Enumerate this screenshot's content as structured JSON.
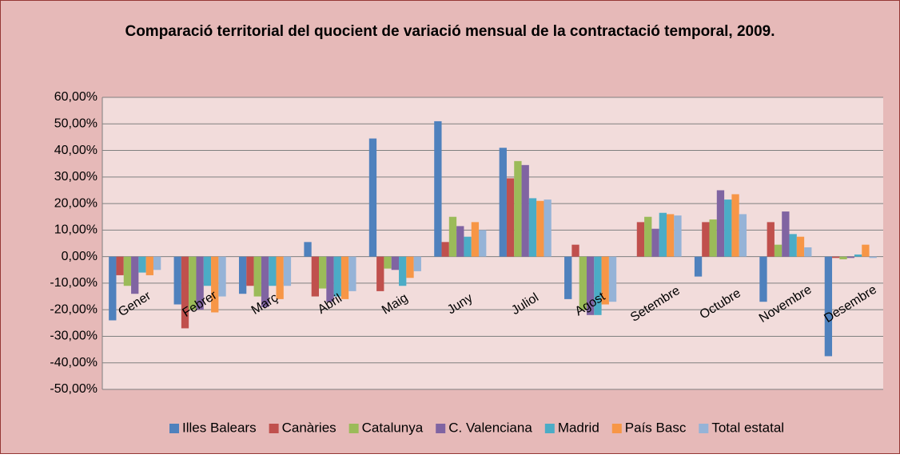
{
  "chart_data": {
    "type": "bar",
    "title": "Comparació territorial del quocient de variació mensual de la contractació temporal, 2009.",
    "categories": [
      "Gener",
      "Febrer",
      "Març",
      "Abril",
      "Maig",
      "Juny",
      "Juliol",
      "Agost",
      "Setembre",
      "Octubre",
      "Novembre",
      "Desembre"
    ],
    "series": [
      {
        "name": "Illes Balears",
        "color": "#4f81bd",
        "values": [
          -24,
          -18,
          -14,
          5.5,
          44.5,
          51,
          41,
          -16,
          0,
          -7.5,
          -17,
          -37.5
        ]
      },
      {
        "name": "Canàries",
        "color": "#c0504d",
        "values": [
          -7,
          -27,
          -11,
          -15,
          -13,
          5.5,
          29.5,
          4.5,
          13,
          13,
          13,
          -0.5
        ]
      },
      {
        "name": "Catalunya",
        "color": "#9bbb59",
        "values": [
          -11,
          -20,
          -15,
          -12,
          -4.5,
          15,
          36,
          -20,
          15,
          14,
          4.5,
          -1
        ]
      },
      {
        "name": "C. Valenciana",
        "color": "#8064a2",
        "values": [
          -14,
          -20,
          -19,
          -17,
          -5,
          11.5,
          34.5,
          -22,
          10.5,
          25,
          17,
          -0.5
        ]
      },
      {
        "name": "Madrid",
        "color": "#4bacc6",
        "values": [
          -6,
          -11,
          -11,
          -15,
          -11,
          7.5,
          22,
          -22,
          16.5,
          21.5,
          8.5,
          0.8
        ]
      },
      {
        "name": "País Basc",
        "color": "#f79646",
        "values": [
          -7,
          -21,
          -16,
          -16,
          -8,
          13,
          21,
          -18,
          16,
          23.5,
          7.5,
          4.5
        ]
      },
      {
        "name": "Total estatal",
        "color": "#95b3d7",
        "values": [
          -5,
          -15,
          -11,
          -13,
          -5.5,
          10,
          21.5,
          -17,
          15.5,
          16,
          3.5,
          -0.5
        ]
      }
    ],
    "ylim": [
      -50,
      60
    ],
    "yticks": [
      {
        "value": -50,
        "label": "-50,00%"
      },
      {
        "value": -40,
        "label": "-40,00%"
      },
      {
        "value": -30,
        "label": "-30,00%"
      },
      {
        "value": -20,
        "label": "-20,00%"
      },
      {
        "value": -10,
        "label": "-10,00%"
      },
      {
        "value": 0,
        "label": "0,00%"
      },
      {
        "value": 10,
        "label": "10,00%"
      },
      {
        "value": 20,
        "label": "20,00%"
      },
      {
        "value": 30,
        "label": "30,00%"
      },
      {
        "value": 40,
        "label": "40,00%"
      },
      {
        "value": 50,
        "label": "50,00%"
      },
      {
        "value": 60,
        "label": "60,00%"
      }
    ],
    "grid": true,
    "legend": "bottom"
  }
}
